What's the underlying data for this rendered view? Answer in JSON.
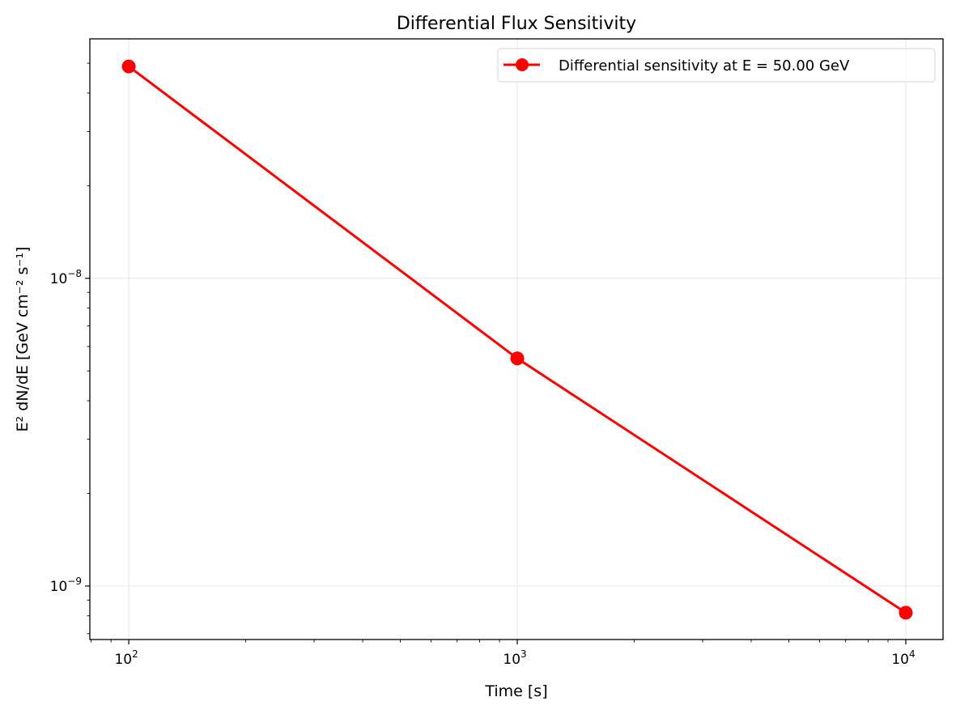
{
  "chart_data": {
    "type": "line",
    "title": "Differential Flux Sensitivity",
    "xlabel": "Time [s]",
    "ylabel": "E² dN/dE [GeV cm⁻² s⁻¹]",
    "xscale": "log",
    "yscale": "log",
    "xlim": [
      79.4,
      12470
    ],
    "ylim": [
      6.7e-10,
      6e-08
    ],
    "x_ticks": [
      {
        "value": 100,
        "base": "10",
        "exp": "2"
      },
      {
        "value": 1000,
        "base": "10",
        "exp": "3"
      },
      {
        "value": 10000,
        "base": "10",
        "exp": "4"
      }
    ],
    "y_ticks": [
      {
        "value": 1e-09,
        "base": "10",
        "exp": "−9"
      },
      {
        "value": 1e-08,
        "base": "10",
        "exp": "−8"
      }
    ],
    "grid": true,
    "legend_placement": "upper-right",
    "series": [
      {
        "name": "Differential sensitivity at E = 50.00 GeV",
        "color": "#ff0000",
        "marker": "circle",
        "x": [
          100,
          1000,
          10000
        ],
        "y": [
          4.88e-08,
          5.49e-09,
          8.19e-10
        ]
      }
    ]
  }
}
